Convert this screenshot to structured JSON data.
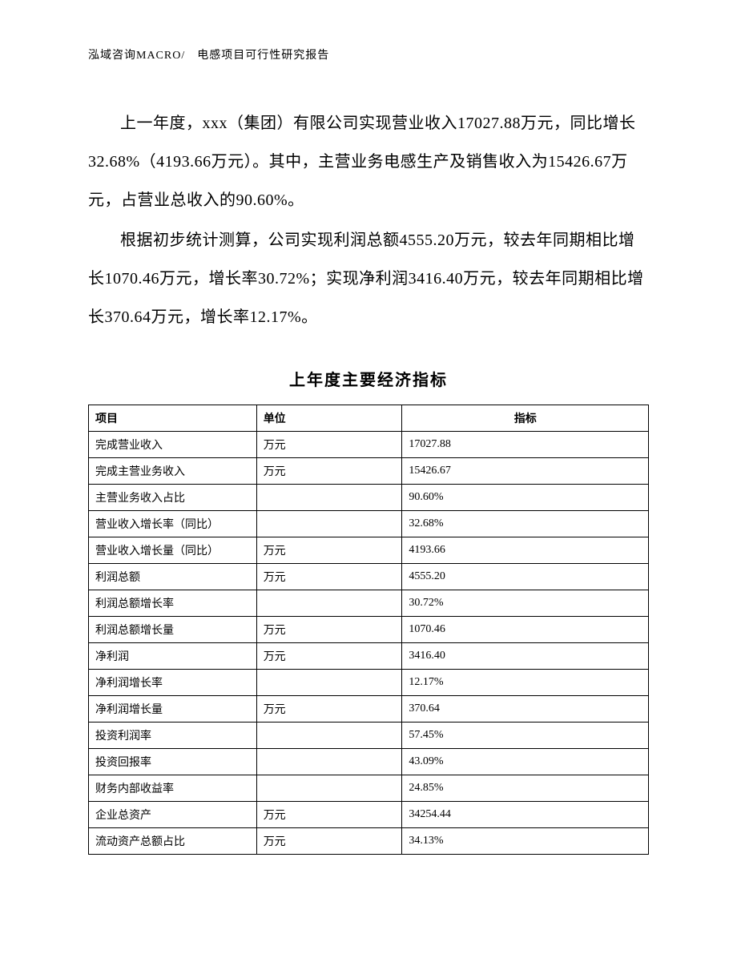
{
  "header": {
    "text": "泓域咨询MACRO/　电感项目可行性研究报告"
  },
  "paragraphs": {
    "p1": "上一年度，xxx（集团）有限公司实现营业收入17027.88万元，同比增长32.68%（4193.66万元）。其中，主营业务电感生产及销售收入为15426.67万元，占营业总收入的90.60%。",
    "p2": "根据初步统计测算，公司实现利润总额4555.20万元，较去年同期相比增长1070.46万元，增长率30.72%；实现净利润3416.40万元，较去年同期相比增长370.64万元，增长率12.17%。"
  },
  "table": {
    "title": "上年度主要经济指标",
    "columns": [
      "项目",
      "单位",
      "指标"
    ],
    "rows": [
      [
        "完成营业收入",
        "万元",
        "17027.88"
      ],
      [
        "完成主营业务收入",
        "万元",
        "15426.67"
      ],
      [
        "主营业务收入占比",
        "",
        "90.60%"
      ],
      [
        "营业收入增长率（同比）",
        "",
        "32.68%"
      ],
      [
        "营业收入增长量（同比）",
        "万元",
        "4193.66"
      ],
      [
        "利润总额",
        "万元",
        "4555.20"
      ],
      [
        "利润总额增长率",
        "",
        "30.72%"
      ],
      [
        "利润总额增长量",
        "万元",
        "1070.46"
      ],
      [
        "净利润",
        "万元",
        "3416.40"
      ],
      [
        "净利润增长率",
        "",
        "12.17%"
      ],
      [
        "净利润增长量",
        "万元",
        "370.64"
      ],
      [
        "投资利润率",
        "",
        "57.45%"
      ],
      [
        "投资回报率",
        "",
        "43.09%"
      ],
      [
        "财务内部收益率",
        "",
        "24.85%"
      ],
      [
        "企业总资产",
        "万元",
        "34254.44"
      ],
      [
        "流动资产总额占比",
        "万元",
        "34.13%"
      ]
    ]
  }
}
